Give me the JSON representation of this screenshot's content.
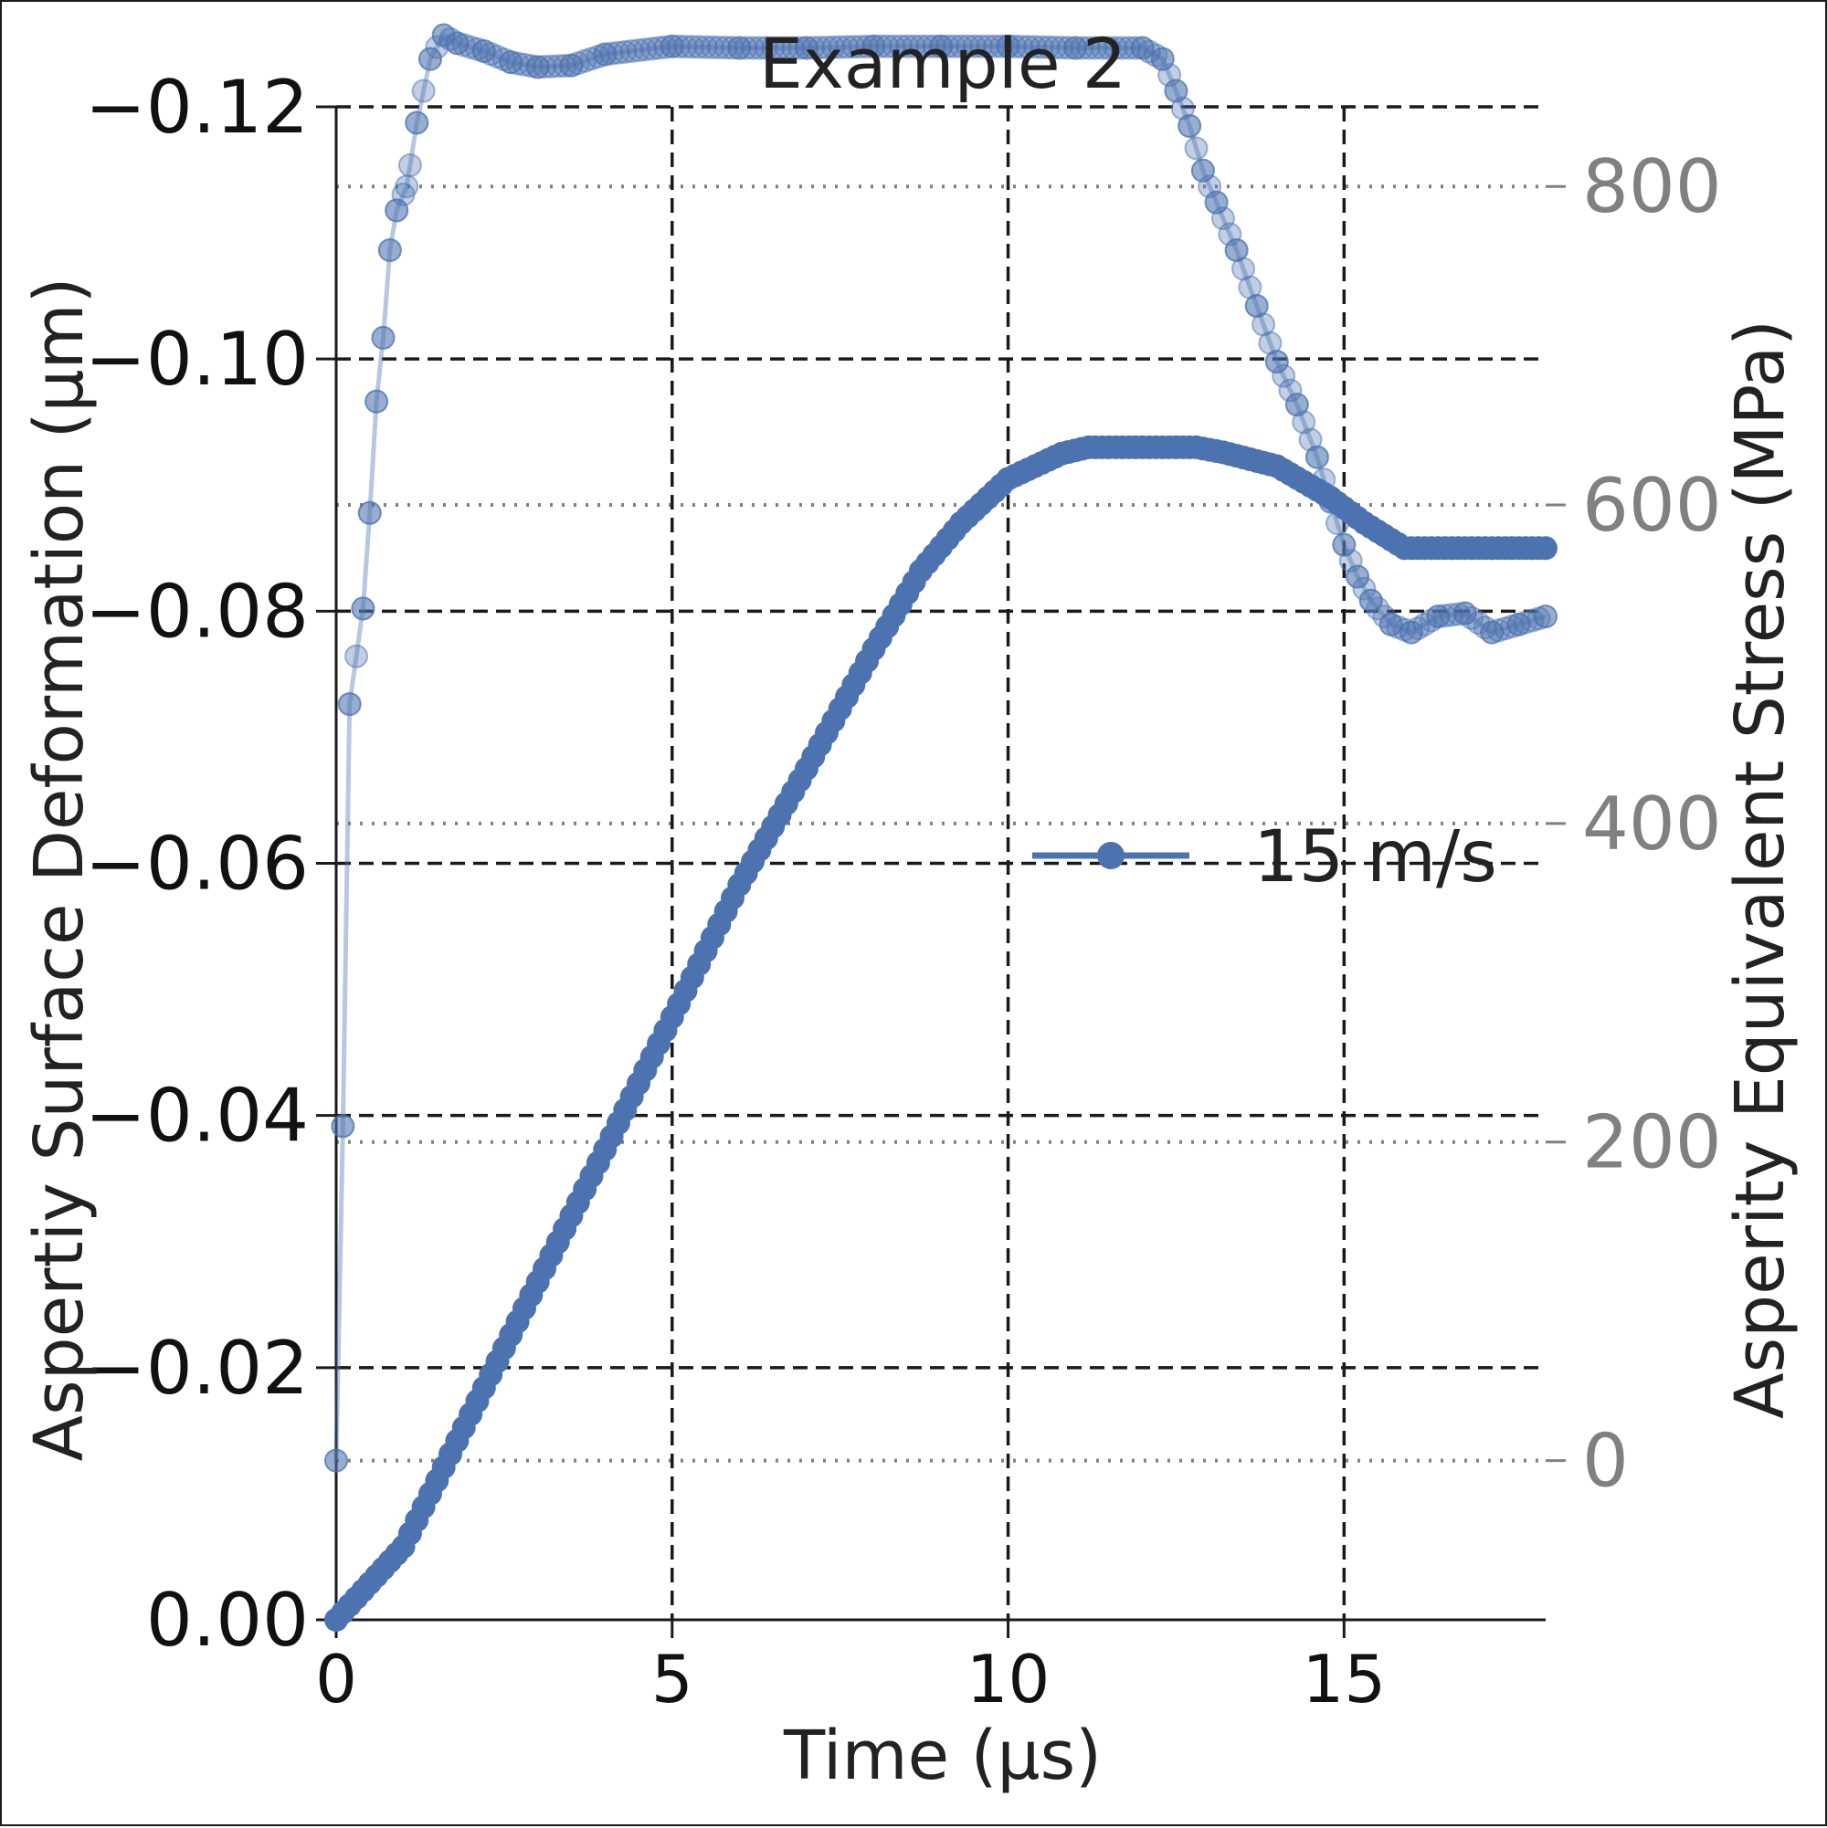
{
  "chart_data": {
    "type": "scatter",
    "title": "Example 2",
    "xlabel": "Time (μs)",
    "ylabel": "Aspertiy Surface Deformation (μm)",
    "ylabel_right": "Asperity Equivalent Stress (MPa)",
    "xlim": [
      0,
      18
    ],
    "ylim": [
      0.0,
      -0.12
    ],
    "ylim_right": [
      -100,
      850
    ],
    "x_ticks": [
      "0",
      "5",
      "10",
      "15"
    ],
    "y_ticks": [
      "0.00",
      "−0.02",
      "−0.04",
      "−0.06",
      "−0.08",
      "−0.10",
      "−0.12"
    ],
    "y_ticks_right": [
      "0",
      "200",
      "400",
      "600",
      "800"
    ],
    "grid": "left axis dashed black, right axis dotted gray",
    "legend": {
      "placement": "center-right",
      "entries": [
        "15 m/s"
      ]
    },
    "colors": {
      "series": "#4c72b0",
      "right_axis": "#808080"
    },
    "series": [
      {
        "name": "15 m/s",
        "axis": "left",
        "description": "deformation",
        "points": [
          [
            0,
            0
          ],
          [
            1,
            -0.0058
          ],
          [
            2,
            -0.0163
          ],
          [
            3,
            -0.0268
          ],
          [
            4,
            -0.0373
          ],
          [
            5,
            -0.0478
          ],
          [
            6,
            -0.0583
          ],
          [
            7,
            -0.0675
          ],
          [
            8,
            -0.077
          ],
          [
            8.7,
            -0.0832
          ],
          [
            9.3,
            -0.087
          ],
          [
            10,
            -0.0905
          ],
          [
            10.8,
            -0.0925
          ],
          [
            11.2,
            -0.093
          ],
          [
            12,
            -0.093
          ],
          [
            12.8,
            -0.093
          ],
          [
            13.2,
            -0.0926
          ],
          [
            14,
            -0.0915
          ],
          [
            14.8,
            -0.089
          ],
          [
            15.3,
            -0.087
          ],
          [
            15.9,
            -0.085
          ],
          [
            18,
            -0.085
          ]
        ]
      },
      {
        "name": "",
        "axis": "right",
        "description": "stress",
        "points": [
          [
            0,
            0
          ],
          [
            0.1,
            210
          ],
          [
            0.2,
            475
          ],
          [
            0.4,
            535
          ],
          [
            0.5,
            595
          ],
          [
            0.6,
            665
          ],
          [
            0.7,
            705
          ],
          [
            0.8,
            760
          ],
          [
            0.9,
            785
          ],
          [
            1.05,
            800
          ],
          [
            1.2,
            840
          ],
          [
            1.4,
            880
          ],
          [
            1.6,
            895
          ],
          [
            1.8,
            890
          ],
          [
            2.2,
            885
          ],
          [
            2.6,
            878
          ],
          [
            3,
            875
          ],
          [
            3.5,
            876
          ],
          [
            4,
            883
          ],
          [
            5,
            888
          ],
          [
            6,
            887
          ],
          [
            7,
            887
          ],
          [
            8,
            888
          ],
          [
            9,
            888
          ],
          [
            10,
            888
          ],
          [
            11,
            887
          ],
          [
            12,
            887
          ],
          [
            12.3,
            880
          ],
          [
            12.5,
            860
          ],
          [
            12.7,
            838
          ],
          [
            12.9,
            810
          ],
          [
            13.1,
            790
          ],
          [
            13.4,
            760
          ],
          [
            13.7,
            725
          ],
          [
            14,
            690
          ],
          [
            14.3,
            663
          ],
          [
            14.6,
            630
          ],
          [
            14.8,
            602
          ],
          [
            15,
            575
          ],
          [
            15.2,
            555
          ],
          [
            15.4,
            540
          ],
          [
            15.7,
            525
          ],
          [
            16,
            520
          ],
          [
            16.4,
            530
          ],
          [
            16.8,
            532
          ],
          [
            17.2,
            520
          ],
          [
            17.6,
            525
          ],
          [
            18,
            530
          ]
        ]
      }
    ]
  }
}
